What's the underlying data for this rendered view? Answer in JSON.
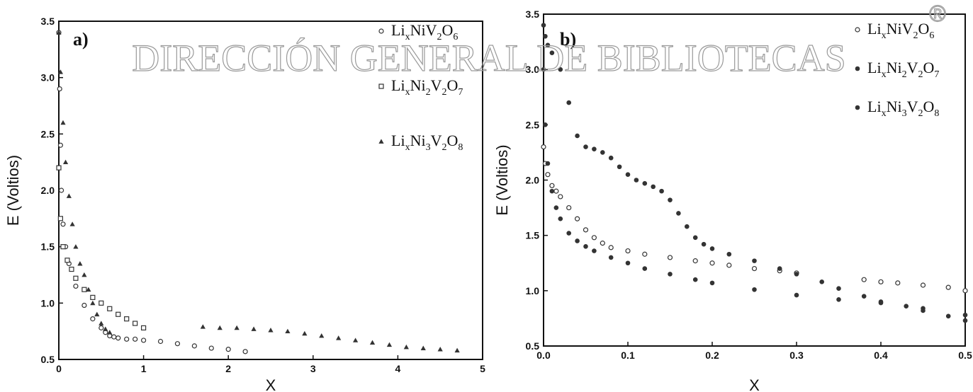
{
  "watermark": {
    "text": "DIRECCIÓN GENERAL DE BIBLIOTECAS",
    "mark": "®"
  },
  "chart_data": [
    {
      "type": "scatter",
      "panel_label": "a)",
      "xlabel": "X",
      "ylabel": "E (Voltios)",
      "xlim": [
        0,
        5
      ],
      "ylim": [
        0.5,
        3.5
      ],
      "xticks": [
        0,
        1,
        2,
        3,
        4,
        5
      ],
      "yticks": [
        0.5,
        1.0,
        1.5,
        2.0,
        2.5,
        3.0,
        3.5
      ],
      "xtick_labels": [
        "0",
        "1",
        "2",
        "3",
        "4",
        "5"
      ],
      "ytick_labels": [
        "0.5",
        "1.0",
        "1.5",
        "2.0",
        "2.5",
        "3.0",
        "3.5"
      ],
      "legend": {
        "placement": "top-right"
      },
      "series": [
        {
          "name_parts": [
            "Li",
            "x",
            "NiV",
            "2",
            "O",
            "6"
          ],
          "marker": "open-circle",
          "color": "#333333",
          "x": [
            0.0,
            0.01,
            0.02,
            0.03,
            0.05,
            0.08,
            0.12,
            0.2,
            0.3,
            0.4,
            0.5,
            0.55,
            0.6,
            0.65,
            0.7,
            0.8,
            0.9,
            1.0,
            1.2,
            1.4,
            1.6,
            1.8,
            2.0,
            2.2
          ],
          "y": [
            3.4,
            2.9,
            2.4,
            2.0,
            1.7,
            1.5,
            1.35,
            1.15,
            0.98,
            0.86,
            0.78,
            0.74,
            0.71,
            0.7,
            0.69,
            0.68,
            0.68,
            0.67,
            0.66,
            0.64,
            0.62,
            0.6,
            0.59,
            0.57
          ]
        },
        {
          "name_parts": [
            "Li",
            "x",
            "Ni",
            "2",
            "V",
            "2",
            "O",
            "7"
          ],
          "marker": "open-square",
          "color": "#333333",
          "x": [
            0.0,
            0.02,
            0.05,
            0.1,
            0.15,
            0.2,
            0.3,
            0.4,
            0.5,
            0.6,
            0.7,
            0.8,
            0.9,
            1.0
          ],
          "y": [
            2.2,
            1.75,
            1.5,
            1.38,
            1.3,
            1.22,
            1.12,
            1.05,
            1.0,
            0.95,
            0.9,
            0.86,
            0.82,
            0.78
          ]
        },
        {
          "name_parts": [
            "Li",
            "x",
            "Ni",
            "3",
            "V",
            "2",
            "O",
            "8"
          ],
          "marker": "filled-triangle",
          "color": "#333333",
          "x": [
            0.0,
            0.02,
            0.05,
            0.08,
            0.12,
            0.16,
            0.2,
            0.25,
            0.3,
            0.35,
            0.4,
            0.45,
            0.5,
            0.55,
            0.6,
            1.7,
            1.9,
            2.1,
            2.3,
            2.5,
            2.7,
            2.9,
            3.1,
            3.3,
            3.5,
            3.7,
            3.9,
            4.1,
            4.3,
            4.5,
            4.7
          ],
          "y": [
            3.4,
            3.05,
            2.6,
            2.25,
            1.95,
            1.7,
            1.5,
            1.35,
            1.25,
            1.12,
            1.0,
            0.9,
            0.82,
            0.77,
            0.74,
            0.79,
            0.78,
            0.78,
            0.77,
            0.76,
            0.75,
            0.73,
            0.71,
            0.69,
            0.67,
            0.65,
            0.63,
            0.61,
            0.6,
            0.59,
            0.58
          ]
        }
      ]
    },
    {
      "type": "scatter",
      "panel_label": "b)",
      "xlabel": "X",
      "ylabel": "E (Voltios)",
      "xlim": [
        0,
        0.5
      ],
      "ylim": [
        0.5,
        3.5
      ],
      "xticks": [
        0,
        0.1,
        0.2,
        0.3,
        0.4,
        0.5
      ],
      "yticks": [
        0.5,
        1.0,
        1.5,
        2.0,
        2.5,
        3.0,
        3.5
      ],
      "xtick_labels": [
        "0.0",
        "0.1",
        "0.2",
        "0.3",
        "0.4",
        "0.5"
      ],
      "ytick_labels": [
        "0.5",
        "1.0",
        "1.5",
        "2.0",
        "2.5",
        "3.0",
        "3.5"
      ],
      "legend": {
        "placement": "top-right"
      },
      "series": [
        {
          "name_parts": [
            "Li",
            "x",
            "NiV",
            "2",
            "O",
            "6"
          ],
          "marker": "open-circle",
          "color": "#333333",
          "x": [
            0.0,
            0.002,
            0.005,
            0.01,
            0.015,
            0.02,
            0.03,
            0.04,
            0.05,
            0.06,
            0.07,
            0.08,
            0.1,
            0.12,
            0.15,
            0.18,
            0.2,
            0.22,
            0.25,
            0.28,
            0.3,
            0.38,
            0.4,
            0.42,
            0.45,
            0.48,
            0.5
          ],
          "y": [
            2.3,
            2.15,
            2.05,
            1.95,
            1.9,
            1.85,
            1.75,
            1.65,
            1.55,
            1.48,
            1.43,
            1.39,
            1.36,
            1.33,
            1.3,
            1.27,
            1.25,
            1.23,
            1.2,
            1.18,
            1.16,
            1.1,
            1.08,
            1.07,
            1.05,
            1.03,
            1.0
          ]
        },
        {
          "name_parts": [
            "Li",
            "x",
            "Ni",
            "2",
            "V",
            "2",
            "O",
            "7"
          ],
          "marker": "filled-circle",
          "color": "#333333",
          "x": [
            0.0,
            0.002,
            0.005,
            0.01,
            0.015,
            0.02,
            0.03,
            0.04,
            0.05,
            0.06,
            0.08,
            0.1,
            0.12,
            0.15,
            0.18,
            0.2,
            0.25,
            0.3,
            0.35,
            0.4,
            0.45,
            0.5
          ],
          "y": [
            3.0,
            2.5,
            2.15,
            1.9,
            1.75,
            1.65,
            1.52,
            1.45,
            1.4,
            1.36,
            1.3,
            1.25,
            1.2,
            1.15,
            1.1,
            1.07,
            1.01,
            0.96,
            0.92,
            0.89,
            0.84,
            0.78
          ]
        },
        {
          "name_parts": [
            "Li",
            "x",
            "Ni",
            "3",
            "V",
            "2",
            "O",
            "8"
          ],
          "marker": "filled-circle",
          "color": "#333333",
          "x": [
            0.0,
            0.002,
            0.005,
            0.01,
            0.02,
            0.03,
            0.04,
            0.05,
            0.06,
            0.07,
            0.08,
            0.09,
            0.1,
            0.11,
            0.12,
            0.13,
            0.14,
            0.15,
            0.16,
            0.17,
            0.18,
            0.19,
            0.2,
            0.22,
            0.25,
            0.28,
            0.3,
            0.33,
            0.35,
            0.38,
            0.4,
            0.43,
            0.45,
            0.48,
            0.5
          ],
          "y": [
            3.4,
            3.3,
            3.22,
            3.15,
            3.0,
            2.7,
            2.4,
            2.3,
            2.28,
            2.25,
            2.2,
            2.12,
            2.05,
            2.0,
            1.97,
            1.94,
            1.9,
            1.82,
            1.7,
            1.58,
            1.48,
            1.42,
            1.38,
            1.33,
            1.27,
            1.2,
            1.15,
            1.08,
            1.02,
            0.95,
            0.9,
            0.86,
            0.82,
            0.77,
            0.73
          ]
        }
      ]
    }
  ]
}
